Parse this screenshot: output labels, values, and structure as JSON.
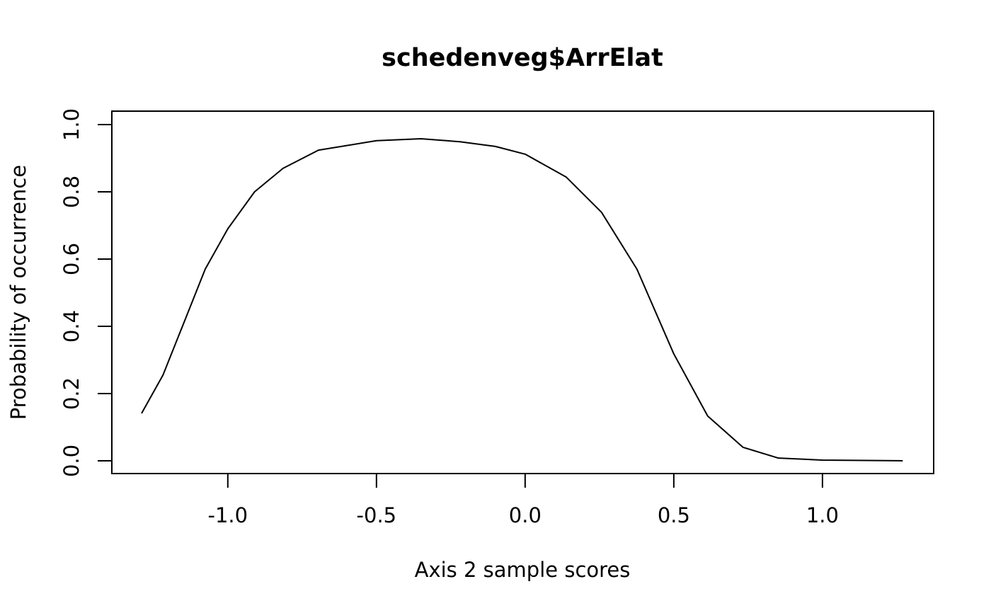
{
  "chart_data": {
    "type": "line",
    "title": "schedenveg$ArrElat",
    "xlabel": "Axis 2 sample scores",
    "ylabel": "Probability of occurrence",
    "x": [
      -1.29,
      -1.218,
      -1.148,
      -1.076,
      -1.0,
      -0.91,
      -0.814,
      -0.695,
      -0.5,
      -0.35,
      -0.219,
      -0.1,
      0.0,
      0.138,
      0.257,
      0.376,
      0.5,
      0.614,
      0.733,
      0.852,
      1.0,
      1.27
    ],
    "series": [
      {
        "color": "#000000",
        "values": [
          0.141,
          0.255,
          0.41,
          0.57,
          0.69,
          0.8,
          0.87,
          0.924,
          0.952,
          0.958,
          0.949,
          0.935,
          0.912,
          0.844,
          0.739,
          0.57,
          0.318,
          0.133,
          0.04,
          0.008,
          0.002,
          0.0
        ]
      }
    ],
    "xlim": [
      -1.39,
      1.374
    ],
    "ylim": [
      -0.038,
      1.04
    ],
    "xticks": [
      {
        "value": -1,
        "label": "-1.0"
      },
      -0.5,
      {
        "value": 0,
        "label": "0.0"
      },
      0.5,
      {
        "value": 1,
        "label": "1.0"
      }
    ],
    "yticks": [
      {
        "value": 0,
        "label": "0.0"
      },
      0.2,
      0.4,
      0.6,
      0.8,
      {
        "value": 1,
        "label": "1.0"
      }
    ]
  }
}
